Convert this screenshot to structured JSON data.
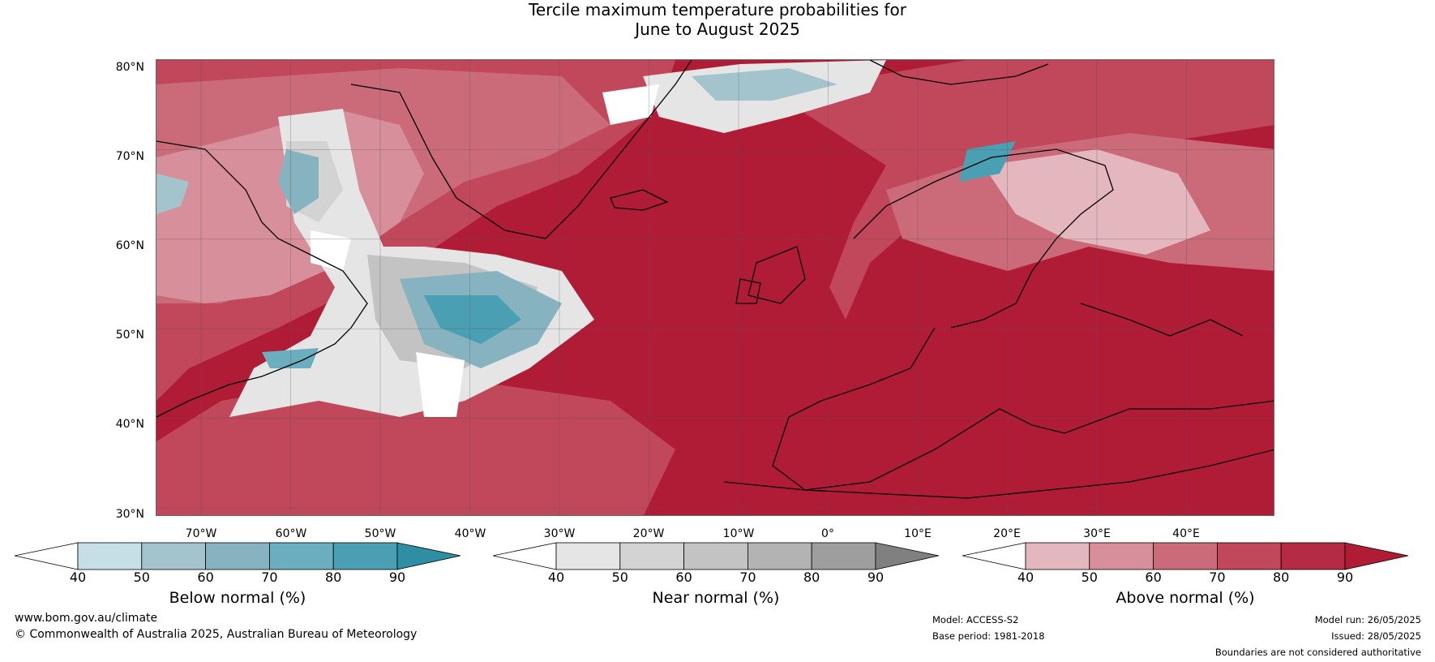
{
  "title": {
    "line1": "Tercile maximum temperature probabilities for",
    "line2": "June to August 2025"
  },
  "map": {
    "latitude_labels": [
      "80°N",
      "70°N",
      "60°N",
      "50°N",
      "40°N",
      "30°N"
    ],
    "longitude_labels": [
      "70°W",
      "60°W",
      "50°W",
      "40°W",
      "30°W",
      "20°W",
      "10°W",
      "0°",
      "10°E",
      "20°E",
      "30°E",
      "40°E"
    ],
    "colors": {
      "above": [
        "#e4b7bf",
        "#d68f9b",
        "#cb6b7a",
        "#c1475b",
        "#b52b45",
        "#b01c36"
      ],
      "near": [
        "#e5e5e5",
        "#d3d3d3",
        "#c3c3c3",
        "#b3b3b3",
        "#9e9e9e",
        "#808080"
      ],
      "below": [
        "#c6dfe6",
        "#a3c4cc",
        "#86b3bf",
        "#6aaebf",
        "#4a9fb2",
        "#2e8ea3"
      ]
    }
  },
  "colorbars": [
    {
      "label": "Below normal (%)",
      "ticks": [
        "40",
        "50",
        "60",
        "70",
        "80",
        "90"
      ],
      "colors": [
        "#ffffff",
        "#c6dfe6",
        "#a3c4cc",
        "#86b3bf",
        "#6aaebf",
        "#4a9fb2",
        "#2e8ea3"
      ]
    },
    {
      "label": "Near normal (%)",
      "ticks": [
        "40",
        "50",
        "60",
        "70",
        "80",
        "90"
      ],
      "colors": [
        "#ffffff",
        "#e5e5e5",
        "#d3d3d3",
        "#c3c3c3",
        "#b3b3b3",
        "#9e9e9e",
        "#808080"
      ]
    },
    {
      "label": "Above normal (%)",
      "ticks": [
        "40",
        "50",
        "60",
        "70",
        "80",
        "90"
      ],
      "colors": [
        "#ffffff",
        "#e4b7bf",
        "#d68f9b",
        "#cb6b7a",
        "#c1475b",
        "#b52b45",
        "#b01c36"
      ]
    }
  ],
  "footer": {
    "website": "www.bom.gov.au/climate",
    "copyright": "© Commonwealth of Australia 2025, Australian Bureau of Meteorology",
    "model": "Model: ACCESS-S2",
    "base_period": "Base period: 1981-2018",
    "model_run": "Model run: 26/05/2025",
    "issued": "Issued: 28/05/2025",
    "disclaimer": "Boundaries are not considered authoritative"
  }
}
